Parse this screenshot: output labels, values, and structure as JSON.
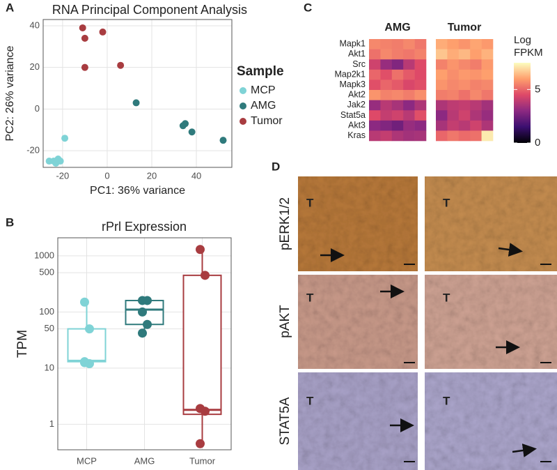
{
  "panel_labels": [
    "A",
    "B",
    "C",
    "D"
  ],
  "chart_data": [
    {
      "type": "scatter",
      "title": "RNA Principal Component Analysis",
      "x_label": "PC1: 36% variance",
      "y_label": "PC2: 26% variance",
      "xlim": [
        -28.7,
        55.9
      ],
      "ylim": [
        -28,
        43
      ],
      "xticks": [
        -20,
        0,
        20,
        40
      ],
      "yticks": [
        -20,
        0,
        20,
        40
      ],
      "grid": true,
      "legend_title": "Sample",
      "series": [
        {
          "name": "MCP",
          "color": "#7fd3d6",
          "x": [
            -19,
            -26,
            -24,
            -22,
            -23,
            -21
          ],
          "values": [
            -14,
            -25,
            -25,
            -24,
            -26,
            -25
          ]
        },
        {
          "name": "AMG",
          "color": "#2f7a7c",
          "x": [
            13,
            34,
            35,
            38,
            52
          ],
          "values": [
            3,
            -8,
            -7,
            -11,
            -15
          ]
        },
        {
          "name": "Tumor",
          "color": "#a83c40",
          "x": [
            -11,
            -2,
            -10,
            -10,
            6
          ],
          "values": [
            39,
            37,
            34,
            20,
            21
          ]
        }
      ]
    },
    {
      "type": "box",
      "title": "rPrl Expression",
      "y_label": "TPM",
      "log_scale": true,
      "ylim": [
        0.35,
        2100
      ],
      "yticks": [
        1,
        10,
        50,
        100,
        500,
        1000
      ],
      "grid": true,
      "categories": [
        "MCP",
        "AMG",
        "Tumor"
      ],
      "colors": [
        "#7fd3d6",
        "#2f7a7c",
        "#a83c40"
      ],
      "boxes": [
        {
          "min": 12,
          "q1": 13,
          "median": 13.5,
          "q3": 50,
          "max": 150
        },
        {
          "min": 42,
          "q1": 60,
          "median": 110,
          "q3": 160,
          "max": 170
        },
        {
          "min": 0.45,
          "q1": 1.5,
          "median": 1.8,
          "q3": 450,
          "max": 1300
        }
      ],
      "points": [
        [
          150,
          50,
          13,
          12,
          12.5
        ],
        [
          160,
          160,
          100,
          60,
          42
        ],
        [
          1300,
          450,
          1.9,
          1.7,
          0.45
        ]
      ]
    },
    {
      "type": "heatmap",
      "rows": [
        "Mapk1",
        "Akt1",
        "Src",
        "Map2k1",
        "Mapk3",
        "Akt2",
        "Jak2",
        "Stat5a",
        "Akt3",
        "Kras"
      ],
      "colorbar_title": [
        "Log",
        "FPKM"
      ],
      "zlim": [
        0,
        7.5
      ],
      "zticks": [
        0,
        5
      ],
      "colormap": "magma",
      "groups": [
        {
          "name": "AMG",
          "values": [
            [
              5.6,
              5.5,
              5.4,
              5.6,
              5.3
            ],
            [
              5.2,
              5.6,
              5.4,
              5.3,
              5.5
            ],
            [
              4.2,
              3.2,
              2.8,
              3.8,
              4.5
            ],
            [
              5.0,
              4.6,
              5.2,
              4.8,
              4.5
            ],
            [
              4.6,
              5.0,
              4.8,
              4.4,
              4.6
            ],
            [
              5.8,
              5.5,
              5.6,
              5.4,
              5.7
            ],
            [
              3.2,
              3.8,
              3.5,
              3.0,
              3.6
            ],
            [
              4.5,
              4.0,
              4.2,
              3.8,
              4.6
            ],
            [
              3.0,
              2.8,
              2.5,
              3.2,
              3.0
            ],
            [
              3.8,
              4.0,
              3.6,
              3.4,
              3.5
            ]
          ]
        },
        {
          "name": "Tumor",
          "values": [
            [
              6.2,
              6.0,
              5.8,
              6.1,
              5.9
            ],
            [
              6.6,
              6.2,
              6.4,
              6.0,
              6.3
            ],
            [
              5.5,
              5.8,
              5.6,
              5.4,
              5.9
            ],
            [
              6.0,
              5.7,
              5.9,
              5.8,
              6.0
            ],
            [
              5.8,
              5.6,
              5.7,
              5.5,
              5.6
            ],
            [
              5.4,
              5.5,
              5.2,
              5.6,
              5.3
            ],
            [
              3.6,
              3.9,
              4.0,
              3.8,
              3.4
            ],
            [
              3.0,
              3.8,
              4.2,
              3.6,
              3.2
            ],
            [
              3.5,
              4.0,
              3.8,
              4.2,
              3.6
            ],
            [
              5.0,
              5.3,
              5.1,
              5.2,
              7.2
            ]
          ]
        }
      ]
    }
  ],
  "micrographs": {
    "row_labels": [
      "pERK1/2",
      "pAKT",
      "STAT5A"
    ],
    "tissue_label": "T"
  }
}
